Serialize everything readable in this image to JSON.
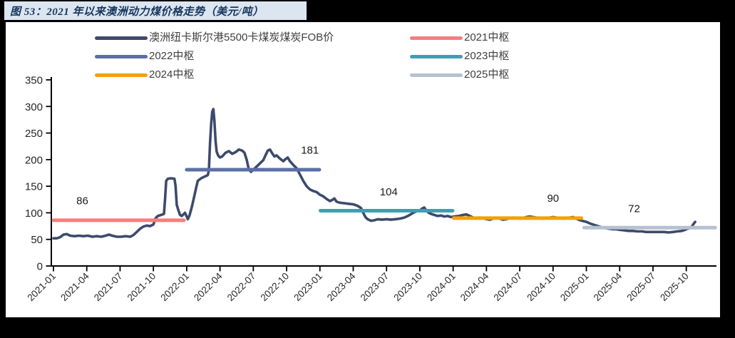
{
  "page": {
    "figure_title": "图 53：2021 年以来澳洲动力煤价格走势（美元/吨）"
  },
  "colors": {
    "page_bg": "#000000",
    "title_bar_bg": "#dce6f1",
    "title_text": "#16365c",
    "panel_bg": "#ffffff",
    "axis": "#000000",
    "tick_text": "#262626",
    "annotation_text": "#1a1a1a"
  },
  "chart_data": {
    "type": "line",
    "title": "图 53：2021 年以来澳洲动力煤价格走势（美元/吨）",
    "unit": "美元/吨",
    "x_axis_note": "months since 2021-01, tick every 3 months",
    "ylim": [
      0,
      350
    ],
    "y_ticks": [
      "0",
      "50",
      "100",
      "150",
      "200",
      "250",
      "300",
      "350"
    ],
    "x_tick_labels": [
      "2021-01",
      "2021-04",
      "2021-07",
      "2021-10",
      "2022-01",
      "2022-04",
      "2022-07",
      "2022-10",
      "2023-01",
      "2023-04",
      "2023-07",
      "2023-10",
      "2024-01",
      "2024-04",
      "2024-07",
      "2024-10",
      "2025-01",
      "2025-04",
      "2025-07",
      "2025-10"
    ],
    "legend": [
      {
        "label": "澳洲纽卡斯尔港5500卡煤炭煤炭FOB价",
        "color": "#3d4a6b"
      },
      {
        "label": "2021中枢",
        "color": "#f57e7e"
      },
      {
        "label": "2022中枢",
        "color": "#5c6fa6"
      },
      {
        "label": "2023中枢",
        "color": "#3f9fb2"
      },
      {
        "label": "2024中枢",
        "color": "#f5a002"
      },
      {
        "label": "2025中枢",
        "color": "#b6c0d2"
      }
    ],
    "series": {
      "name": "澳洲纽卡斯尔港5500卡煤炭煤炭FOB价",
      "color": "#3d4a6b",
      "points": [
        [
          0,
          52
        ],
        [
          0.3,
          52
        ],
        [
          0.6,
          54
        ],
        [
          0.9,
          59
        ],
        [
          1.2,
          60
        ],
        [
          1.5,
          57
        ],
        [
          1.9,
          56
        ],
        [
          2.3,
          57
        ],
        [
          2.7,
          56
        ],
        [
          3.1,
          57
        ],
        [
          3.5,
          55
        ],
        [
          3.9,
          56
        ],
        [
          4.3,
          55
        ],
        [
          4.7,
          57
        ],
        [
          5.0,
          59
        ],
        [
          5.3,
          57
        ],
        [
          5.7,
          55
        ],
        [
          6.1,
          55
        ],
        [
          6.5,
          56
        ],
        [
          6.9,
          55
        ],
        [
          7.2,
          58
        ],
        [
          7.5,
          64
        ],
        [
          7.8,
          70
        ],
        [
          8.1,
          74
        ],
        [
          8.4,
          76
        ],
        [
          8.7,
          75
        ],
        [
          9.0,
          78
        ],
        [
          9.2,
          90
        ],
        [
          9.4,
          94
        ],
        [
          9.7,
          96
        ],
        [
          9.95,
          98
        ],
        [
          10.05,
          125
        ],
        [
          10.15,
          160
        ],
        [
          10.3,
          164
        ],
        [
          10.6,
          165
        ],
        [
          10.9,
          164
        ],
        [
          11.0,
          150
        ],
        [
          11.1,
          115
        ],
        [
          11.25,
          105
        ],
        [
          11.4,
          96
        ],
        [
          11.55,
          94
        ],
        [
          11.7,
          97
        ],
        [
          11.85,
          100
        ],
        [
          12.0,
          93
        ],
        [
          12.1,
          88
        ],
        [
          12.25,
          95
        ],
        [
          12.45,
          110
        ],
        [
          12.65,
          128
        ],
        [
          12.85,
          147
        ],
        [
          13.0,
          160
        ],
        [
          13.3,
          165
        ],
        [
          13.6,
          168
        ],
        [
          13.9,
          171
        ],
        [
          14.0,
          180
        ],
        [
          14.1,
          230
        ],
        [
          14.2,
          265
        ],
        [
          14.3,
          290
        ],
        [
          14.4,
          295
        ],
        [
          14.5,
          272
        ],
        [
          14.6,
          235
        ],
        [
          14.7,
          215
        ],
        [
          14.85,
          207
        ],
        [
          15.0,
          204
        ],
        [
          15.2,
          206
        ],
        [
          15.5,
          213
        ],
        [
          15.8,
          216
        ],
        [
          16.1,
          211
        ],
        [
          16.4,
          214
        ],
        [
          16.7,
          219
        ],
        [
          17.0,
          217
        ],
        [
          17.2,
          213
        ],
        [
          17.4,
          200
        ],
        [
          17.6,
          181
        ],
        [
          17.8,
          177
        ],
        [
          18.0,
          181
        ],
        [
          18.3,
          187
        ],
        [
          18.6,
          193
        ],
        [
          18.9,
          199
        ],
        [
          19.1,
          208
        ],
        [
          19.3,
          217
        ],
        [
          19.5,
          219
        ],
        [
          19.7,
          212
        ],
        [
          19.9,
          206
        ],
        [
          20.1,
          208
        ],
        [
          20.4,
          202
        ],
        [
          20.7,
          197
        ],
        [
          20.9,
          201
        ],
        [
          21.1,
          204
        ],
        [
          21.3,
          197
        ],
        [
          21.6,
          190
        ],
        [
          21.9,
          184
        ],
        [
          22.2,
          172
        ],
        [
          22.5,
          160
        ],
        [
          22.8,
          150
        ],
        [
          23.1,
          144
        ],
        [
          23.4,
          141
        ],
        [
          23.7,
          139
        ],
        [
          24.0,
          134
        ],
        [
          24.3,
          131
        ],
        [
          24.6,
          126
        ],
        [
          24.9,
          122
        ],
        [
          25.1,
          124
        ],
        [
          25.3,
          127
        ],
        [
          25.5,
          121
        ],
        [
          25.8,
          119
        ],
        [
          26.2,
          118
        ],
        [
          26.6,
          117
        ],
        [
          27.0,
          116
        ],
        [
          27.4,
          113
        ],
        [
          27.7,
          109
        ],
        [
          27.9,
          100
        ],
        [
          28.1,
          92
        ],
        [
          28.3,
          88
        ],
        [
          28.6,
          85
        ],
        [
          28.9,
          86
        ],
        [
          29.2,
          88
        ],
        [
          29.6,
          87
        ],
        [
          30.0,
          88
        ],
        [
          30.4,
          87
        ],
        [
          30.8,
          88
        ],
        [
          31.2,
          89
        ],
        [
          31.6,
          91
        ],
        [
          32.0,
          95
        ],
        [
          32.4,
          100
        ],
        [
          32.7,
          103
        ],
        [
          33.0,
          104
        ],
        [
          33.2,
          108
        ],
        [
          33.4,
          110
        ],
        [
          33.6,
          104
        ],
        [
          33.8,
          100
        ],
        [
          34.0,
          98
        ],
        [
          34.3,
          96
        ],
        [
          34.6,
          94
        ],
        [
          34.9,
          95
        ],
        [
          35.2,
          93
        ],
        [
          35.5,
          94
        ],
        [
          35.8,
          92
        ],
        [
          36.1,
          93
        ],
        [
          36.5,
          94
        ],
        [
          36.9,
          96
        ],
        [
          37.2,
          97
        ],
        [
          37.5,
          94
        ],
        [
          37.8,
          91
        ],
        [
          38.1,
          89
        ],
        [
          38.4,
          91
        ],
        [
          38.7,
          90
        ],
        [
          39.0,
          88
        ],
        [
          39.3,
          87
        ],
        [
          39.6,
          89
        ],
        [
          39.9,
          90
        ],
        [
          40.2,
          89
        ],
        [
          40.5,
          87
        ],
        [
          40.8,
          88
        ],
        [
          41.1,
          90
        ],
        [
          41.4,
          91
        ],
        [
          41.7,
          90
        ],
        [
          42.0,
          89
        ],
        [
          42.3,
          90
        ],
        [
          42.6,
          92
        ],
        [
          42.9,
          93
        ],
        [
          43.2,
          92
        ],
        [
          43.5,
          91
        ],
        [
          43.8,
          90
        ],
        [
          44.1,
          89
        ],
        [
          44.4,
          90
        ],
        [
          44.7,
          91
        ],
        [
          45.0,
          92
        ],
        [
          45.3,
          91
        ],
        [
          45.6,
          90
        ],
        [
          45.9,
          89
        ],
        [
          46.2,
          90
        ],
        [
          46.5,
          91
        ],
        [
          46.8,
          92
        ],
        [
          47.0,
          90
        ],
        [
          47.3,
          87
        ],
        [
          47.6,
          85
        ],
        [
          48.0,
          83
        ],
        [
          48.3,
          80
        ],
        [
          48.6,
          78
        ],
        [
          48.9,
          76
        ],
        [
          49.2,
          74
        ],
        [
          49.5,
          72
        ],
        [
          49.8,
          71
        ],
        [
          50.1,
          70
        ],
        [
          50.4,
          69
        ],
        [
          50.7,
          69
        ],
        [
          51.0,
          68
        ],
        [
          51.4,
          67
        ],
        [
          51.8,
          66
        ],
        [
          52.2,
          66
        ],
        [
          52.6,
          65
        ],
        [
          53.0,
          65
        ],
        [
          53.4,
          64
        ],
        [
          53.8,
          64
        ],
        [
          54.2,
          64
        ],
        [
          54.6,
          64
        ],
        [
          55.0,
          64
        ],
        [
          55.4,
          63
        ],
        [
          55.8,
          64
        ],
        [
          56.2,
          65
        ],
        [
          56.6,
          66
        ],
        [
          56.9,
          68
        ],
        [
          57.1,
          70
        ],
        [
          57.3,
          71
        ],
        [
          57.5,
          74
        ],
        [
          57.65,
          79
        ],
        [
          57.8,
          83
        ]
      ]
    },
    "center_lines": [
      {
        "year": "2021",
        "label": "2021中枢",
        "value": 86,
        "start_month": 0.0,
        "end_month": 11.75,
        "color": "#f57e7e"
      },
      {
        "year": "2022",
        "label": "2022中枢",
        "value": 181,
        "start_month": 12.0,
        "end_month": 23.95,
        "color": "#5c6fa6"
      },
      {
        "year": "2023",
        "label": "2023中枢",
        "value": 104,
        "start_month": 24.05,
        "end_month": 35.95,
        "color": "#3f9fb2"
      },
      {
        "year": "2024",
        "label": "2024中枢",
        "value": 90,
        "start_month": 36.05,
        "end_month": 47.55,
        "color": "#f5a002"
      },
      {
        "year": "2025",
        "label": "2025中枢",
        "value": 72,
        "start_month": 47.8,
        "end_month": 59.6,
        "color": "#b6c0d2"
      }
    ],
    "annotations": [
      {
        "text": "86",
        "month": 2.6,
        "value": 116
      },
      {
        "text": "181",
        "month": 23.1,
        "value": 211
      },
      {
        "text": "104",
        "month": 30.2,
        "value": 133
      },
      {
        "text": "90",
        "month": 45.0,
        "value": 121
      },
      {
        "text": "72",
        "month": 52.3,
        "value": 101
      }
    ],
    "legend_position": "top",
    "grid": false
  }
}
